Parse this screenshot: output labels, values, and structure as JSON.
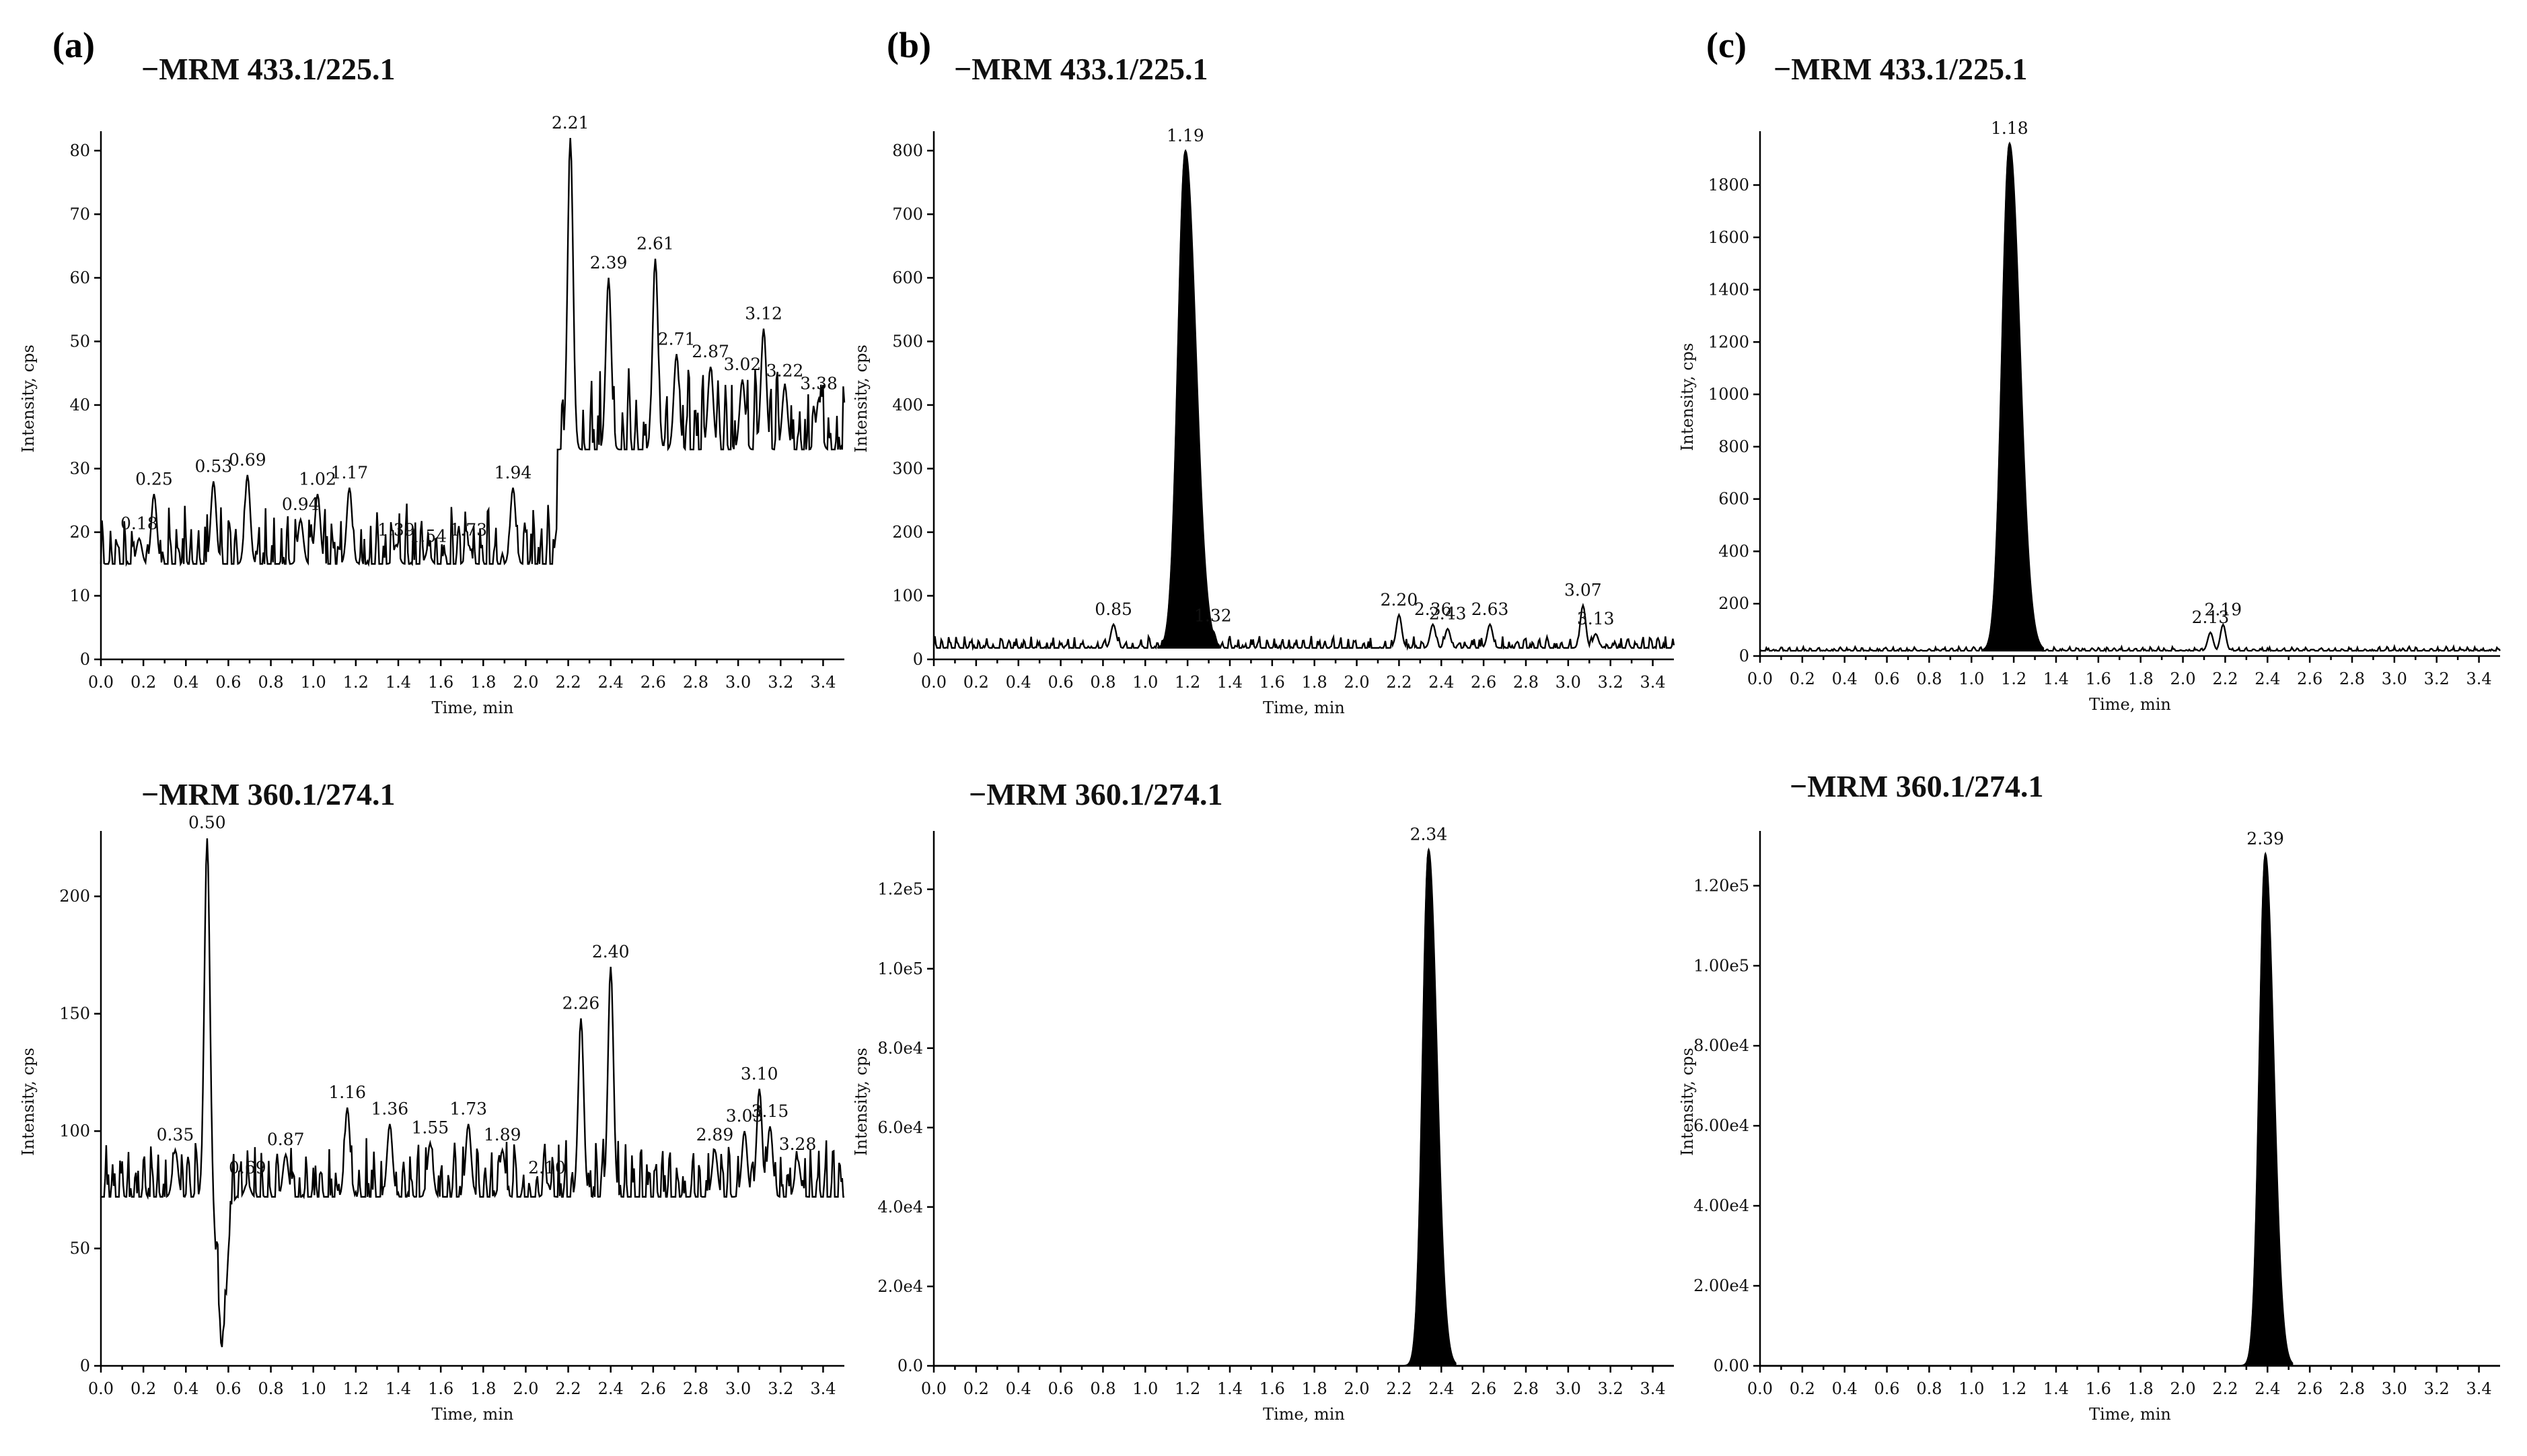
{
  "panel_labels": [
    "(a)",
    "(b)",
    "(c)"
  ],
  "chart_data": [
    {
      "type": "line",
      "panel": "(a)",
      "title": "−MRM 433.1/225.1",
      "xlabel": "Time, min",
      "ylabel": "Intensity, cps",
      "xlim": [
        0,
        3.5
      ],
      "ylim": [
        0,
        82
      ],
      "x_ticks": [
        "0.0",
        "0.2",
        "0.4",
        "0.6",
        "0.8",
        "1.0",
        "1.2",
        "1.4",
        "1.6",
        "1.8",
        "2.0",
        "2.2",
        "2.4",
        "2.6",
        "2.8",
        "3.0",
        "3.2",
        "3.4"
      ],
      "y_ticks": [
        "0",
        "10",
        "20",
        "30",
        "40",
        "50",
        "60",
        "70",
        "80"
      ],
      "y_tick_values": [
        0,
        10,
        20,
        30,
        40,
        50,
        60,
        70,
        80
      ],
      "filled": false,
      "baseline": 15,
      "noise": 6,
      "noise_after": {
        "x": 2.15,
        "baseline": 33,
        "noise": 9
      },
      "peaks": [
        {
          "x": 0.18,
          "y": 19,
          "label": "0.18"
        },
        {
          "x": 0.25,
          "y": 26,
          "label": "0.25"
        },
        {
          "x": 0.53,
          "y": 28,
          "label": "0.53"
        },
        {
          "x": 0.69,
          "y": 29,
          "label": "0.69"
        },
        {
          "x": 0.94,
          "y": 22,
          "label": "0.94"
        },
        {
          "x": 1.02,
          "y": 26,
          "label": "1.02"
        },
        {
          "x": 1.17,
          "y": 27,
          "label": "1.17"
        },
        {
          "x": 1.39,
          "y": 18,
          "label": "1.39"
        },
        {
          "x": 1.54,
          "y": 17,
          "label": "1.54"
        },
        {
          "x": 1.73,
          "y": 18,
          "label": "1.73"
        },
        {
          "x": 1.94,
          "y": 27,
          "label": "1.94"
        },
        {
          "x": 2.21,
          "y": 82,
          "label": "2.21"
        },
        {
          "x": 2.39,
          "y": 60,
          "label": "2.39"
        },
        {
          "x": 2.61,
          "y": 63,
          "label": "2.61"
        },
        {
          "x": 2.71,
          "y": 48,
          "label": "2.71"
        },
        {
          "x": 2.87,
          "y": 46,
          "label": "2.87"
        },
        {
          "x": 3.02,
          "y": 44,
          "label": "3.02"
        },
        {
          "x": 3.12,
          "y": 52,
          "label": "3.12"
        },
        {
          "x": 3.22,
          "y": 43,
          "label": "3.22"
        },
        {
          "x": 3.38,
          "y": 41,
          "label": "3.38"
        }
      ]
    },
    {
      "type": "line",
      "panel": "(b)",
      "title": "−MRM 433.1/225.1",
      "xlabel": "Time, min",
      "ylabel": "Intensity, cps",
      "xlim": [
        0,
        3.5
      ],
      "ylim": [
        0,
        820
      ],
      "x_ticks": [
        "0.0",
        "0.2",
        "0.4",
        "0.6",
        "0.8",
        "1.0",
        "1.2",
        "1.4",
        "1.6",
        "1.8",
        "2.0",
        "2.2",
        "2.4",
        "2.6",
        "2.8",
        "3.0",
        "3.2",
        "3.4"
      ],
      "y_ticks": [
        "0",
        "100",
        "200",
        "300",
        "400",
        "500",
        "600",
        "700",
        "800"
      ],
      "y_tick_values": [
        0,
        100,
        200,
        300,
        400,
        500,
        600,
        700,
        800
      ],
      "filled": true,
      "baseline": 18,
      "noise": 12,
      "main_peak": {
        "x": 1.19,
        "y": 800,
        "width": 0.05
      },
      "peaks": [
        {
          "x": 0.85,
          "y": 55,
          "label": "0.85"
        },
        {
          "x": 1.19,
          "y": 800,
          "label": "1.19"
        },
        {
          "x": 1.32,
          "y": 45,
          "label": "1.32"
        },
        {
          "x": 2.2,
          "y": 70,
          "label": "2.20"
        },
        {
          "x": 2.36,
          "y": 55,
          "label": "2.36"
        },
        {
          "x": 2.43,
          "y": 48,
          "label": "2.43"
        },
        {
          "x": 2.63,
          "y": 55,
          "label": "2.63"
        },
        {
          "x": 3.07,
          "y": 85,
          "label": "3.07"
        },
        {
          "x": 3.13,
          "y": 40,
          "label": "3.13"
        }
      ]
    },
    {
      "type": "line",
      "panel": "(c)",
      "title": "−MRM 433.1/225.1",
      "xlabel": "Time, min",
      "ylabel": "Intensity, cps",
      "xlim": [
        0,
        3.5
      ],
      "ylim": [
        0,
        1980
      ],
      "x_ticks": [
        "0.0",
        "0.2",
        "0.4",
        "0.6",
        "0.8",
        "1.0",
        "1.2",
        "1.4",
        "1.6",
        "1.8",
        "2.0",
        "2.2",
        "2.4",
        "2.6",
        "2.8",
        "3.0",
        "3.2",
        "3.4"
      ],
      "y_ticks": [
        "0",
        "200",
        "400",
        "600",
        "800",
        "1000",
        "1200",
        "1400",
        "1600",
        "1800"
      ],
      "y_tick_values": [
        0,
        200,
        400,
        600,
        800,
        1000,
        1200,
        1400,
        1600,
        1800
      ],
      "filled": true,
      "baseline": 20,
      "noise": 10,
      "main_peak": {
        "x": 1.18,
        "y": 1960,
        "width": 0.05
      },
      "peaks": [
        {
          "x": 1.18,
          "y": 1960,
          "label": "1.18"
        },
        {
          "x": 2.13,
          "y": 90,
          "label": "2.13"
        },
        {
          "x": 2.19,
          "y": 120,
          "label": "2.19"
        }
      ]
    },
    {
      "type": "line",
      "panel": "(a)",
      "title": "−MRM 360.1/274.1",
      "xlabel": "Time, min",
      "ylabel": "Intensity, cps",
      "xlim": [
        0,
        3.5
      ],
      "ylim": [
        0,
        225
      ],
      "x_ticks": [
        "0.0",
        "0.2",
        "0.4",
        "0.6",
        "0.8",
        "1.0",
        "1.2",
        "1.4",
        "1.6",
        "1.8",
        "2.0",
        "2.2",
        "2.4",
        "2.6",
        "2.8",
        "3.0",
        "3.2",
        "3.4"
      ],
      "y_ticks": [
        "0",
        "50",
        "100",
        "150",
        "200"
      ],
      "y_tick_values": [
        0,
        50,
        100,
        150,
        200
      ],
      "filled": false,
      "baseline": 72,
      "noise": 16,
      "dip": {
        "x": 0.57,
        "y": 8
      },
      "peaks": [
        {
          "x": 0.35,
          "y": 92,
          "label": "0.35"
        },
        {
          "x": 0.5,
          "y": 225,
          "label": "0.50"
        },
        {
          "x": 0.69,
          "y": 78,
          "label": "0.69"
        },
        {
          "x": 0.87,
          "y": 90,
          "label": "0.87"
        },
        {
          "x": 1.16,
          "y": 110,
          "label": "1.16"
        },
        {
          "x": 1.36,
          "y": 103,
          "label": "1.36"
        },
        {
          "x": 1.55,
          "y": 95,
          "label": "1.55"
        },
        {
          "x": 1.73,
          "y": 103,
          "label": "1.73"
        },
        {
          "x": 1.89,
          "y": 92,
          "label": "1.89"
        },
        {
          "x": 2.1,
          "y": 78,
          "label": "2.10"
        },
        {
          "x": 2.26,
          "y": 148,
          "label": "2.26"
        },
        {
          "x": 2.4,
          "y": 170,
          "label": "2.40"
        },
        {
          "x": 2.89,
          "y": 92,
          "label": "2.89"
        },
        {
          "x": 3.03,
          "y": 100,
          "label": "3.03"
        },
        {
          "x": 3.1,
          "y": 118,
          "label": "3.10"
        },
        {
          "x": 3.15,
          "y": 102,
          "label": "3.15"
        },
        {
          "x": 3.28,
          "y": 88,
          "label": "3.28"
        }
      ]
    },
    {
      "type": "line",
      "panel": "(b)",
      "title": "−MRM 360.1/274.1",
      "xlabel": "Time, min",
      "ylabel": "Intensity, cps",
      "xlim": [
        0,
        3.5
      ],
      "ylim": [
        0,
        133000
      ],
      "x_ticks": [
        "0.0",
        "0.2",
        "0.4",
        "0.6",
        "0.8",
        "1.0",
        "1.2",
        "1.4",
        "1.6",
        "1.8",
        "2.0",
        "2.2",
        "2.4",
        "2.6",
        "2.8",
        "3.0",
        "3.2",
        "3.4"
      ],
      "y_ticks": [
        "0.0",
        "2.0e4",
        "4.0e4",
        "6.0e4",
        "8.0e4",
        "1.0e5",
        "1.2e5"
      ],
      "y_tick_values": [
        0,
        20000,
        40000,
        60000,
        80000,
        100000,
        120000
      ],
      "filled": true,
      "baseline": 0,
      "noise": 0,
      "main_peak": {
        "x": 2.34,
        "y": 130000,
        "width": 0.04
      },
      "peaks": [
        {
          "x": 2.34,
          "y": 130000,
          "label": "2.34"
        }
      ]
    },
    {
      "type": "line",
      "panel": "(c)",
      "title": "−MRM 360.1/274.1",
      "xlabel": "Time, min",
      "ylabel": "Intensity, cps",
      "xlim": [
        0,
        3.5
      ],
      "ylim": [
        0,
        132000
      ],
      "x_ticks": [
        "0.0",
        "0.2",
        "0.4",
        "0.6",
        "0.8",
        "1.0",
        "1.2",
        "1.4",
        "1.6",
        "1.8",
        "2.0",
        "2.2",
        "2.4",
        "2.6",
        "2.8",
        "3.0",
        "3.2",
        "3.4"
      ],
      "y_ticks": [
        "0.00",
        "2.00e4",
        "4.00e4",
        "6.00e4",
        "8.00e4",
        "1.00e5",
        "1.20e5"
      ],
      "y_tick_values": [
        0,
        20000,
        40000,
        60000,
        80000,
        100000,
        120000
      ],
      "filled": true,
      "baseline": 0,
      "noise": 0,
      "main_peak": {
        "x": 2.39,
        "y": 128000,
        "width": 0.04
      },
      "peaks": [
        {
          "x": 2.39,
          "y": 128000,
          "label": "2.39"
        }
      ]
    }
  ]
}
